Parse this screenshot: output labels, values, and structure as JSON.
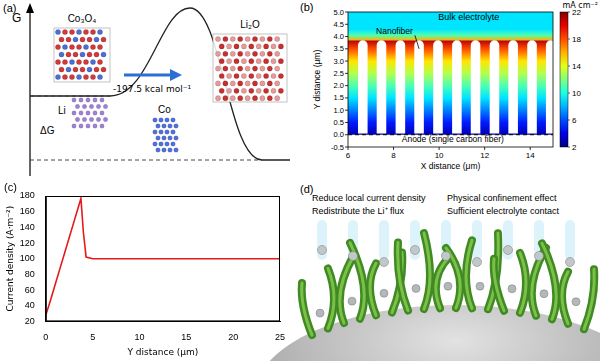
{
  "diagrams": {
    "a": {
      "label": "(a)",
      "axis_label": "G",
      "delta_label": "ΔG",
      "reaction_energy": "-197.5 kcal mol⁻¹",
      "structures": [
        "Co₃O₄",
        "Li",
        "Co",
        "Li₂O"
      ]
    },
    "d": {
      "label": "(d)",
      "effects": [
        "Reduce local current density",
        "Redistribute the Li⁺ flux",
        "Physical confinement effect",
        "Sufficient electrolyte contact"
      ]
    }
  },
  "chart_data": [
    {
      "type": "heatmap",
      "label": "(b)",
      "x_label": "X distance (μm)",
      "y_label": "Y distance (μm)",
      "xlim": [
        6,
        15
      ],
      "xticks": [
        6,
        8,
        10,
        12,
        14
      ],
      "ylim": [
        -0.5,
        5
      ],
      "yticks": [
        -0.5,
        {
          "value": 0,
          "label": "0.0"
        },
        0.5,
        {
          "value": 1,
          "label": "1.0"
        },
        1.5,
        {
          "value": 2,
          "label": "2.0"
        },
        2.5,
        {
          "value": 3,
          "label": "3.0"
        },
        3.5,
        {
          "value": 4,
          "label": "4.0"
        },
        4.5,
        {
          "value": 5,
          "label": "5.0"
        }
      ],
      "colorbar": {
        "title": "mA cm⁻²",
        "range": [
          2,
          22
        ],
        "ticks": [
          2,
          6,
          10,
          14,
          18,
          22
        ]
      },
      "field": {
        "y": [
          0,
          0.5,
          1,
          1.5,
          2,
          2.5,
          3,
          3.5,
          3.85
        ],
        "values": [
          3,
          5,
          7,
          9,
          11,
          13,
          15,
          18,
          21
        ]
      },
      "bulk_field": {
        "y": [
          3.85,
          4.05,
          4.3,
          5
        ],
        "values": [
          16,
          11,
          9,
          9
        ]
      },
      "nanofibers": {
        "x": [
          6.65,
          7.47,
          8.3,
          9.12,
          9.95,
          10.78,
          11.6,
          12.43,
          13.25,
          14.08,
          14.9
        ],
        "width": 0.42,
        "top": 3.85,
        "bottom": 0.05
      },
      "anode_y": 0,
      "annotations": [
        "Bulk electrolyte",
        "Nanofiber",
        "Anode (single carbon fiber)"
      ]
    },
    {
      "type": "line",
      "label": "(c)",
      "x_label": "Y distance (μm)",
      "y_label": "Current density (A·m⁻²)",
      "x": [
        0,
        0.5,
        1,
        1.5,
        2,
        2.5,
        3,
        3.5,
        3.75,
        4.0,
        4.3,
        5,
        10,
        15,
        20,
        25
      ],
      "values": [
        28,
        47,
        67,
        87,
        107,
        127,
        147,
        167,
        177,
        135,
        102,
        100,
        100,
        100,
        100,
        100
      ],
      "color": "#e41a1c",
      "xlim": [
        0,
        25
      ],
      "xticks": [
        0,
        5,
        10,
        15,
        20,
        25
      ],
      "ylim": [
        20,
        180
      ],
      "yticks": [
        20,
        40,
        60,
        80,
        100,
        120,
        140,
        160,
        180
      ],
      "grid": false
    }
  ]
}
